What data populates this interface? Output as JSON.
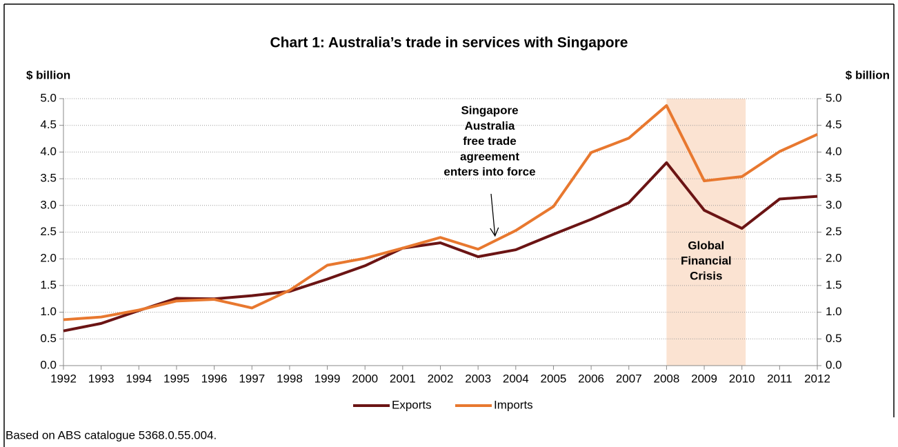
{
  "chart_data": {
    "type": "line",
    "title": "Chart 1: Australia’s trade in services with Singapore",
    "y_label": "$ billion",
    "y2_label": "$ billion",
    "footnote": "Based on ABS catalogue 5368.0.55.004.",
    "x": [
      1992,
      1993,
      1994,
      1995,
      1996,
      1997,
      1998,
      1999,
      2000,
      2001,
      2002,
      2003,
      2004,
      2005,
      2006,
      2007,
      2008,
      2009,
      2010,
      2011,
      2012
    ],
    "xlim": [
      1992,
      2012
    ],
    "xticks": [
      1992,
      1993,
      1994,
      1995,
      1996,
      1997,
      1998,
      1999,
      2000,
      2001,
      2002,
      2003,
      2004,
      2005,
      2006,
      2007,
      2008,
      2009,
      2010,
      2011,
      2012
    ],
    "ylim": [
      0,
      5
    ],
    "yticks": [
      {
        "value": 0,
        "label": "0.0"
      },
      {
        "value": 0.5,
        "label": "0.5"
      },
      {
        "value": 1,
        "label": "1.0"
      },
      {
        "value": 1.5,
        "label": "1.5"
      },
      {
        "value": 2,
        "label": "2.0"
      },
      {
        "value": 2.5,
        "label": "2.5"
      },
      {
        "value": 3,
        "label": "3.0"
      },
      {
        "value": 3.5,
        "label": "3.5"
      },
      {
        "value": 4,
        "label": "4.0"
      },
      {
        "value": 4.5,
        "label": "4.5"
      },
      {
        "value": 5,
        "label": "5.0"
      }
    ],
    "y2lim": [
      0,
      5
    ],
    "y2ticks": [
      {
        "value": 0,
        "label": "0.0"
      },
      {
        "value": 0.5,
        "label": "0.5"
      },
      {
        "value": 1,
        "label": "1.0"
      },
      {
        "value": 1.5,
        "label": "1.5"
      },
      {
        "value": 2,
        "label": "2.0"
      },
      {
        "value": 2.5,
        "label": "2.5"
      },
      {
        "value": 3,
        "label": "3.0"
      },
      {
        "value": 3.5,
        "label": "3.5"
      },
      {
        "value": 4,
        "label": "4.0"
      },
      {
        "value": 4.5,
        "label": "4.5"
      },
      {
        "value": 5,
        "label": "5.0"
      }
    ],
    "grid": true,
    "legend": "bottom",
    "series": [
      {
        "name": "Exports",
        "color": "#6b1414",
        "values": [
          0.65,
          0.79,
          1.03,
          1.26,
          1.25,
          1.31,
          1.39,
          1.62,
          1.87,
          2.2,
          2.3,
          2.04,
          2.17,
          2.46,
          2.74,
          3.05,
          3.8,
          2.91,
          2.57,
          3.12,
          3.17
        ]
      },
      {
        "name": "Imports",
        "color": "#e8782f",
        "values": [
          0.86,
          0.91,
          1.04,
          1.21,
          1.24,
          1.08,
          1.41,
          1.88,
          2.01,
          2.2,
          2.4,
          2.18,
          2.53,
          2.98,
          3.99,
          4.26,
          4.87,
          3.46,
          3.54,
          4.01,
          4.33
        ]
      }
    ],
    "shaded_region": {
      "from": 2008,
      "to": 2010.1,
      "color": "#fbe3d2",
      "label": [
        "Global",
        "Financial",
        "Crisis"
      ]
    },
    "annotation": {
      "text": [
        "Singapore",
        "Australia",
        "free trade",
        "agreement",
        "enters into force"
      ],
      "x": 2003.45,
      "y": 2.43
    }
  }
}
